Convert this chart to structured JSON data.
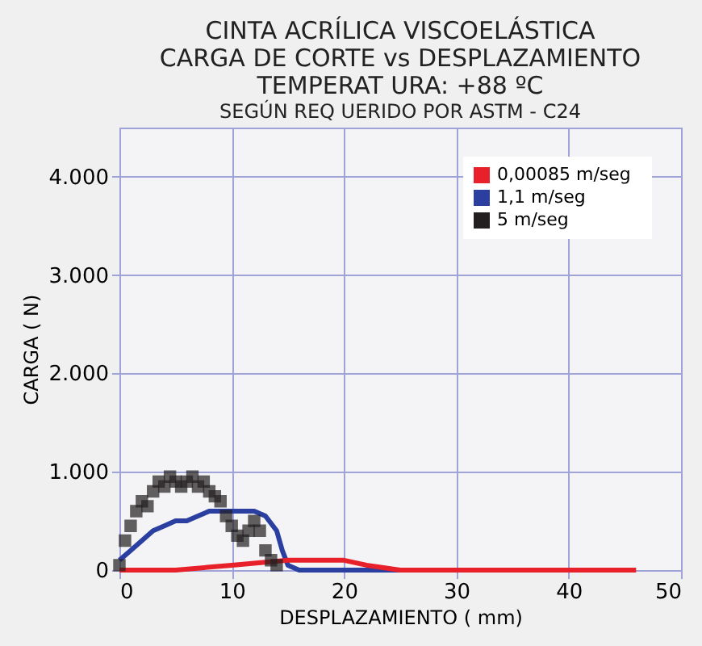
{
  "chart_data": {
    "type": "line",
    "title": [
      "CINTA ACRÍLICA VISCOELÁSTICA",
      "CARGA  DE CORTE vs DESPLAZAMIENTO",
      "TEMPERAT URA: +88 ºC"
    ],
    "subtitle": "SEGÚN REQ UERIDO POR ASTM -   C24",
    "xlabel": "DESPLAZAMIENTO ( mm)",
    "ylabel": "CARGA  ( N)",
    "xlim": [
      0,
      50
    ],
    "xticks": [
      0,
      10,
      20,
      30,
      40,
      50
    ],
    "ylim": [
      0,
      4500
    ],
    "yticks": [
      {
        "value": 0,
        "label": "0"
      },
      {
        "value": 1000,
        "label": "1.000"
      },
      {
        "value": 2000,
        "label": "2.000"
      },
      {
        "value": 3000,
        "label": "3.000"
      },
      {
        "value": 4000,
        "label": "4.000"
      }
    ],
    "grid": true,
    "legend": "top right",
    "series": [
      {
        "name": "0,00085   m/seg",
        "color": "#e8202a",
        "x": [
          0,
          5,
          10,
          15,
          18,
          20,
          22,
          25,
          30,
          40,
          46
        ],
        "values": [
          0,
          0,
          50,
          100,
          100,
          100,
          50,
          0,
          0,
          0,
          0
        ]
      },
      {
        "name": "1,1   m/seg",
        "color": "#2b3fa0",
        "x": [
          0,
          1,
          2,
          3,
          4,
          5,
          6,
          7,
          8,
          9,
          10,
          11,
          12,
          13,
          14,
          14.5,
          15,
          16,
          20,
          26,
          30
        ],
        "values": [
          100,
          200,
          300,
          400,
          450,
          500,
          500,
          550,
          600,
          600,
          600,
          600,
          600,
          550,
          400,
          200,
          50,
          0,
          0,
          0,
          0
        ]
      },
      {
        "name": "5  m/seg",
        "color": "#231f20",
        "type": "scatter",
        "x": [
          0,
          0.5,
          1,
          1.5,
          2,
          2.5,
          3,
          3.5,
          4,
          4.5,
          5,
          5.5,
          6,
          6.5,
          7,
          7.5,
          8,
          8.5,
          9,
          9.5,
          10,
          10.5,
          11,
          11.5,
          12,
          12.5,
          13,
          13.5,
          14
        ],
        "values": [
          50,
          300,
          450,
          600,
          700,
          650,
          800,
          900,
          850,
          950,
          900,
          850,
          900,
          950,
          850,
          900,
          800,
          750,
          700,
          550,
          450,
          350,
          300,
          400,
          500,
          400,
          200,
          100,
          50
        ]
      }
    ]
  }
}
